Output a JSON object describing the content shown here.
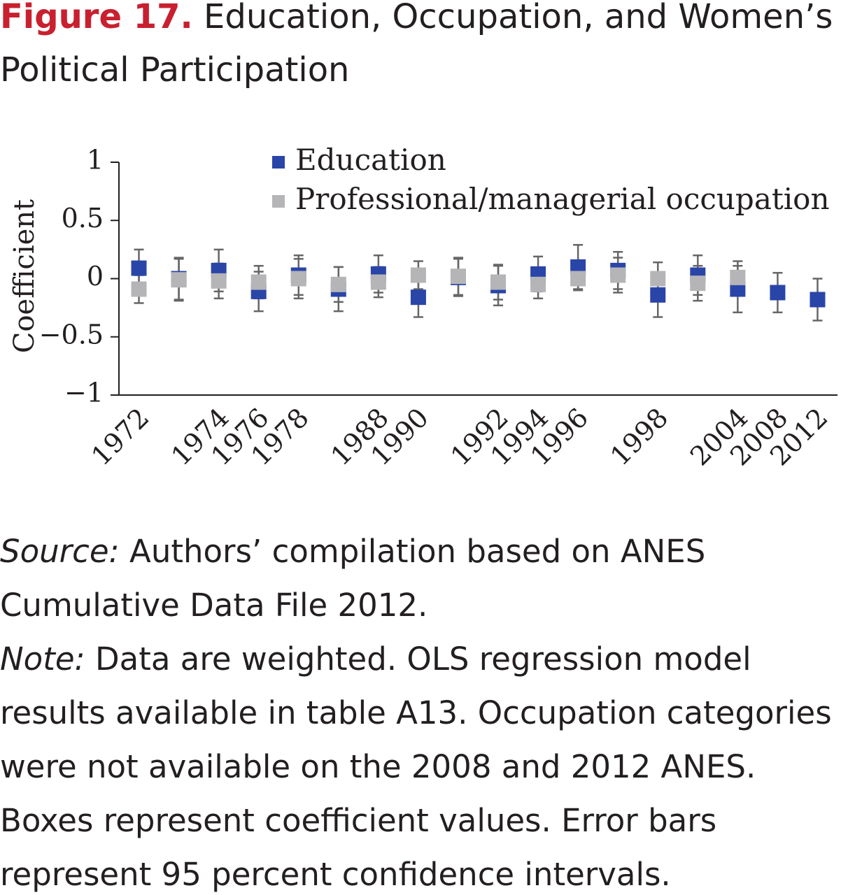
{
  "chart_data": {
    "type": "errorbar",
    "figure_label": "Figure 17.",
    "title": "Education, Occupation, and Women’s Political Participation",
    "y_label": "Coefficient",
    "categories": [
      "1972",
      null,
      "1974",
      "1976",
      "1978",
      null,
      "1988",
      "1990",
      null,
      "1992",
      "1994",
      "1996",
      null,
      "1998",
      null,
      "2004",
      "2008",
      "2012"
    ],
    "series": [
      {
        "name": "Education",
        "color": "#2a45a8",
        "values": [
          0.09,
          0.0,
          0.07,
          -0.11,
          0.03,
          -0.09,
          0.04,
          -0.16,
          0.01,
          -0.06,
          0.04,
          0.1,
          0.07,
          -0.14,
          0.03,
          -0.09,
          -0.12,
          -0.18
        ],
        "errors": [
          0.16,
          0.18,
          0.18,
          0.17,
          0.17,
          0.19,
          0.16,
          0.17,
          0.16,
          0.17,
          0.15,
          0.19,
          0.16,
          0.19,
          0.17,
          0.2,
          0.17,
          0.18
        ]
      },
      {
        "name": "Professional/managerial occupation",
        "color": "#b5b5b8",
        "values": [
          -0.09,
          -0.01,
          -0.02,
          -0.03,
          0.0,
          -0.05,
          -0.03,
          0.03,
          0.02,
          -0.03,
          -0.05,
          0.0,
          0.03,
          0.0,
          -0.04,
          0.01,
          null,
          null
        ],
        "errors": [
          0.12,
          0.18,
          0.15,
          0.14,
          0.17,
          0.15,
          0.13,
          0.12,
          0.16,
          0.15,
          0.12,
          0.1,
          0.15,
          0.14,
          0.15,
          0.14,
          null,
          null
        ]
      }
    ],
    "ylim": [
      -1,
      1
    ],
    "yticks": [
      {
        "value": -1,
        "label": "−1"
      },
      {
        "value": -0.5,
        "label": "−0.5"
      },
      0,
      0.5,
      1
    ],
    "legend": "top",
    "source_label": "Source:",
    "source": "Authors’ compilation based on ANES Cumulative Data File 2012.",
    "note_label": "Note:",
    "note": "Data are weighted. OLS regression model results available in table A13. Occupation categories were not available on the 2008 and 2012 ANES. Boxes represent coefficient values. Error bars represent 95 percent confidence intervals."
  }
}
